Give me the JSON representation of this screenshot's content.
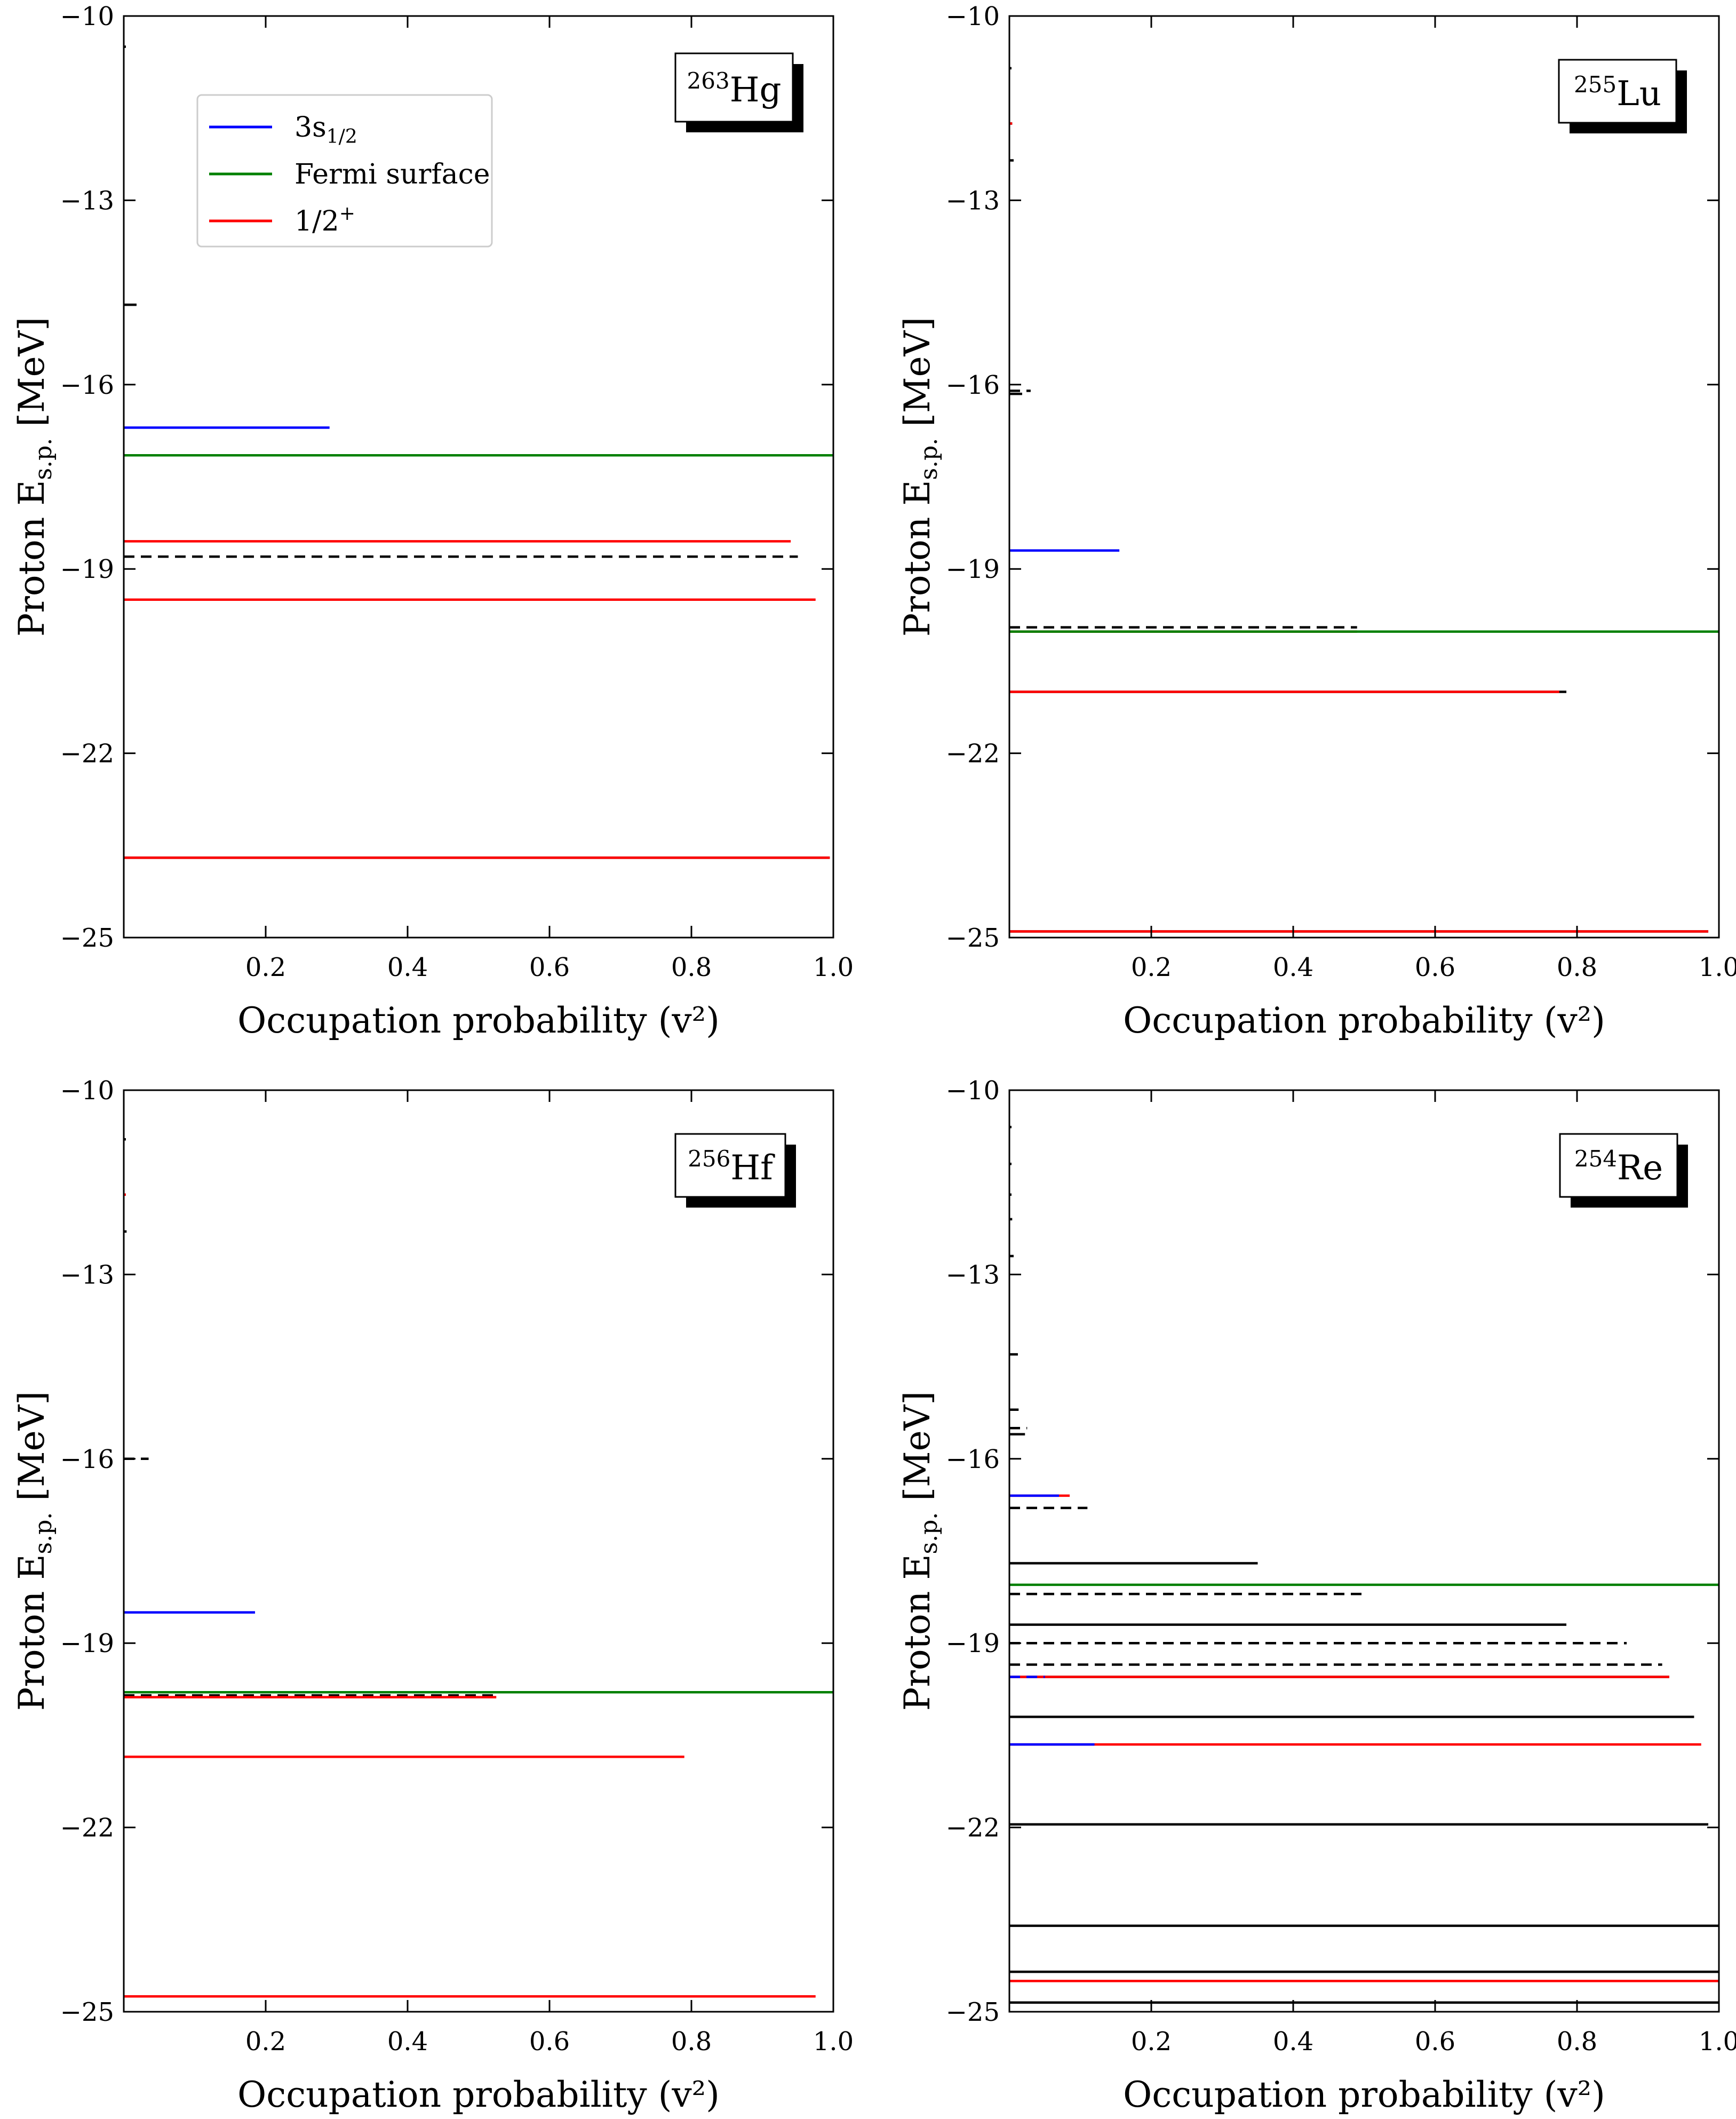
{
  "chart_data": [
    {
      "type": "line",
      "nucleus": {
        "mass": "263",
        "symbol": "Hg"
      },
      "xlabel": "Occupation probability (v²)",
      "ylabel": "Proton E",
      "ylabel_sub": "s.p.",
      "ylabel_unit": "[MeV]",
      "xlim": [
        0.0,
        1.0
      ],
      "ylim": [
        -25,
        -10
      ],
      "xticks": [
        "0.2",
        "0.4",
        "0.6",
        "0.8",
        "1.0"
      ],
      "yticks": [
        "−10",
        "−13",
        "−16",
        "−19",
        "−22",
        "−25"
      ],
      "legend": [
        {
          "label": "3s",
          "sub": "1/2",
          "color": "#0000ff"
        },
        {
          "label": "Fermi surface",
          "color": "#008000"
        },
        {
          "label": "1/2",
          "sup": "+",
          "color": "#ff0000"
        }
      ],
      "levels": [
        {
          "energy": -10.5,
          "v2": 0.003,
          "color": "#000000",
          "dashed": false
        },
        {
          "energy": -14.7,
          "v2": 0.018,
          "color": "#000000",
          "dashed": false
        },
        {
          "energy": -16.7,
          "v2": 0.29,
          "color": "#0000ff",
          "dashed": false
        },
        {
          "energy": -17.15,
          "v2": 1.0,
          "color": "#008000",
          "dashed": false
        },
        {
          "energy": -18.55,
          "v2": 0.94,
          "color": "#ff0000",
          "dashed": false
        },
        {
          "energy": -18.8,
          "v2": 0.95,
          "color": "#000000",
          "dashed": true
        },
        {
          "energy": -19.5,
          "v2": 0.975,
          "color": "#ff0000",
          "dashed": false
        },
        {
          "energy": -23.7,
          "v2": 0.995,
          "color": "#000000",
          "dashed": false
        },
        {
          "energy": -23.7,
          "v2": 0.995,
          "color": "#ff0000",
          "dashed": false
        }
      ]
    },
    {
      "type": "line",
      "nucleus": {
        "mass": "255",
        "symbol": "Lu"
      },
      "xlabel": "Occupation probability (v²)",
      "ylabel": "Proton E",
      "ylabel_sub": "s.p.",
      "ylabel_unit": "[MeV]",
      "xlim": [
        0.0,
        1.0
      ],
      "ylim": [
        -25,
        -10
      ],
      "xticks": [
        "0.2",
        "0.4",
        "0.6",
        "0.8",
        "1.0"
      ],
      "yticks": [
        "−10",
        "−13",
        "−16",
        "−19",
        "−22",
        "−25"
      ],
      "levels": [
        {
          "energy": -10.85,
          "v2": 0.003,
          "color": "#000000",
          "dashed": false
        },
        {
          "energy": -11.75,
          "v2": 0.004,
          "color": "#000000",
          "dashed": false
        },
        {
          "energy": -11.75,
          "v2": 0.004,
          "color": "#ff0000",
          "dashed": false
        },
        {
          "energy": -12.35,
          "v2": 0.006,
          "color": "#000000",
          "dashed": false
        },
        {
          "energy": -16.1,
          "v2": 0.03,
          "color": "#000000",
          "dashed": true
        },
        {
          "energy": -16.15,
          "v2": 0.018,
          "color": "#000000",
          "dashed": false
        },
        {
          "energy": -18.7,
          "v2": 0.155,
          "color": "#0000ff",
          "dashed": false
        },
        {
          "energy": -19.95,
          "v2": 0.49,
          "color": "#000000",
          "dashed": true
        },
        {
          "energy": -20.02,
          "v2": 0.49,
          "color": "#ff0000",
          "dashed": false
        },
        {
          "energy": -20.02,
          "v2": 1.0,
          "color": "#008000",
          "dashed": false
        },
        {
          "energy": -21.0,
          "v2": 0.785,
          "color": "#000000",
          "dashed": false
        },
        {
          "energy": -21.0,
          "v2": 0.775,
          "color": "#ff0000",
          "dashed": false
        },
        {
          "energy": -24.9,
          "v2": 0.985,
          "color": "#000000",
          "dashed": false
        },
        {
          "energy": -24.9,
          "v2": 0.985,
          "color": "#ff0000",
          "dashed": false
        }
      ]
    },
    {
      "type": "line",
      "nucleus": {
        "mass": "256",
        "symbol": "Hf"
      },
      "xlabel": "Occupation probability (v²)",
      "ylabel": "Proton E",
      "ylabel_sub": "s.p.",
      "ylabel_unit": "[MeV]",
      "xlim": [
        0.0,
        1.0
      ],
      "ylim": [
        -25,
        -10
      ],
      "xticks": [
        "0.2",
        "0.4",
        "0.6",
        "0.8",
        "1.0"
      ],
      "yticks": [
        "−10",
        "−13",
        "−16",
        "−19",
        "−22",
        "−25"
      ],
      "levels": [
        {
          "energy": -10.8,
          "v2": 0.003,
          "color": "#000000",
          "dashed": false
        },
        {
          "energy": -11.7,
          "v2": 0.003,
          "color": "#ff0000",
          "dashed": false
        },
        {
          "energy": -12.3,
          "v2": 0.004,
          "color": "#000000",
          "dashed": false
        },
        {
          "energy": -16.0,
          "v2": 0.035,
          "color": "#000000",
          "dashed": true
        },
        {
          "energy": -18.5,
          "v2": 0.185,
          "color": "#0000ff",
          "dashed": false
        },
        {
          "energy": -19.8,
          "v2": 1.0,
          "color": "#008000",
          "dashed": false
        },
        {
          "energy": -19.85,
          "v2": 0.525,
          "color": "#000000",
          "dashed": true
        },
        {
          "energy": -19.88,
          "v2": 0.525,
          "color": "#ff0000",
          "dashed": false
        },
        {
          "energy": -20.85,
          "v2": 0.79,
          "color": "#ff0000",
          "dashed": false
        },
        {
          "energy": -24.75,
          "v2": 0.975,
          "color": "#ff0000",
          "dashed": false
        }
      ]
    },
    {
      "type": "line",
      "nucleus": {
        "mass": "254",
        "symbol": "Re"
      },
      "xlabel": "Occupation probability (v²)",
      "ylabel": "Proton E",
      "ylabel_sub": "s.p.",
      "ylabel_unit": "[MeV]",
      "xlim": [
        0.0,
        1.0
      ],
      "ylim": [
        -25,
        -10
      ],
      "xticks": [
        "0.2",
        "0.4",
        "0.6",
        "0.8",
        "1.0"
      ],
      "yticks": [
        "−10",
        "−13",
        "−16",
        "−19",
        "−22",
        "−25"
      ],
      "levels": [
        {
          "energy": -10.6,
          "v2": 0.003,
          "color": "#000000",
          "dashed": false
        },
        {
          "energy": -11.2,
          "v2": 0.003,
          "color": "#000000",
          "dashed": false
        },
        {
          "energy": -11.7,
          "v2": 0.003,
          "color": "#000000",
          "dashed": false
        },
        {
          "energy": -12.1,
          "v2": 0.004,
          "color": "#000000",
          "dashed": false
        },
        {
          "energy": -12.7,
          "v2": 0.006,
          "color": "#000000",
          "dashed": false
        },
        {
          "energy": -14.3,
          "v2": 0.012,
          "color": "#000000",
          "dashed": false
        },
        {
          "energy": -15.2,
          "v2": 0.013,
          "color": "#000000",
          "dashed": false
        },
        {
          "energy": -15.5,
          "v2": 0.025,
          "color": "#000000",
          "dashed": true
        },
        {
          "energy": -15.6,
          "v2": 0.022,
          "color": "#000000",
          "dashed": false
        },
        {
          "energy": -16.6,
          "v2": 0.085,
          "color": "#ff0000",
          "dashed": false
        },
        {
          "energy": -16.6,
          "v2": 0.07,
          "color": "#0000ff",
          "dashed": false
        },
        {
          "energy": -16.8,
          "v2": 0.11,
          "color": "#000000",
          "dashed": true
        },
        {
          "energy": -17.7,
          "v2": 0.35,
          "color": "#000000",
          "dashed": false
        },
        {
          "energy": -18.05,
          "v2": 1.0,
          "color": "#008000",
          "dashed": false
        },
        {
          "energy": -18.2,
          "v2": 0.5,
          "color": "#000000",
          "dashed": true
        },
        {
          "energy": -18.7,
          "v2": 0.785,
          "color": "#000000",
          "dashed": false
        },
        {
          "energy": -19.0,
          "v2": 0.87,
          "color": "#000000",
          "dashed": true
        },
        {
          "energy": -19.35,
          "v2": 0.92,
          "color": "#000000",
          "dashed": true
        },
        {
          "energy": -19.55,
          "v2": 0.93,
          "color": "#000000",
          "dashed": false
        },
        {
          "energy": -19.55,
          "v2": 0.93,
          "color": "#ff0000",
          "dashed": false
        },
        {
          "energy": -19.55,
          "v2": 0.05,
          "color": "#0000ff",
          "dashed": true
        },
        {
          "energy": -20.2,
          "v2": 0.965,
          "color": "#000000",
          "dashed": false
        },
        {
          "energy": -20.65,
          "v2": 0.975,
          "color": "#ff0000",
          "dashed": false
        },
        {
          "energy": -20.65,
          "v2": 0.12,
          "color": "#0000ff",
          "dashed": false
        },
        {
          "energy": -21.95,
          "v2": 0.985,
          "color": "#000000",
          "dashed": false
        },
        {
          "energy": -23.6,
          "v2": 1.0,
          "color": "#000000",
          "dashed": false
        },
        {
          "energy": -24.35,
          "v2": 1.0,
          "color": "#000000",
          "dashed": false
        },
        {
          "energy": -24.5,
          "v2": 1.0,
          "color": "#ff0000",
          "dashed": false
        },
        {
          "energy": -24.85,
          "v2": 1.0,
          "color": "#000000",
          "dashed": false
        }
      ]
    }
  ]
}
